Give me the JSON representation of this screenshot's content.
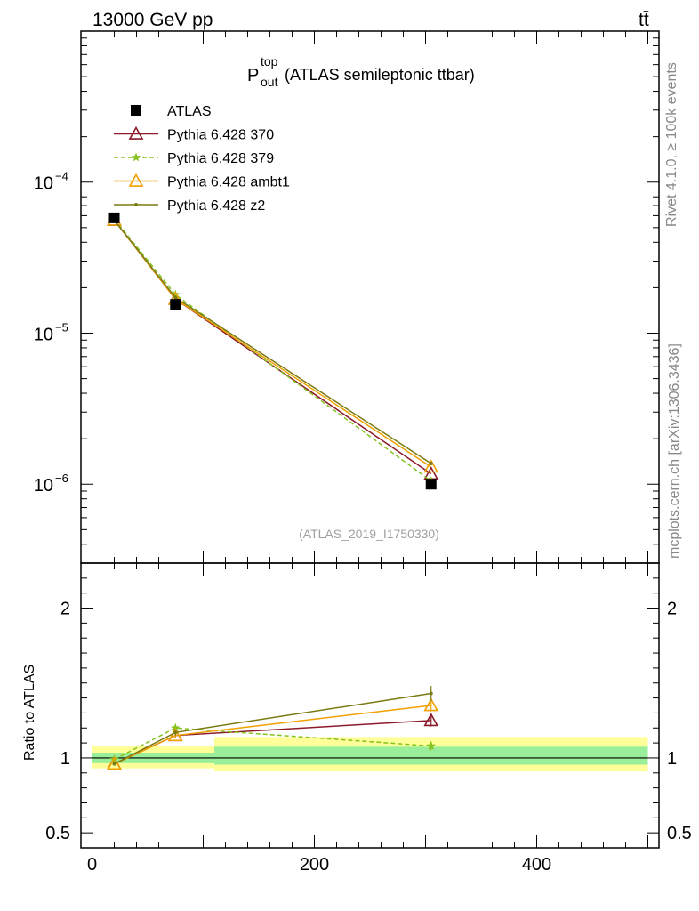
{
  "header": {
    "energy_label": "13000 GeV pp",
    "process_label": "tt̄"
  },
  "side_labels": {
    "rivet": "Rivet 4.1.0, ≥ 100k events",
    "source": "mcplots.cern.ch [arXiv:1306.3436]"
  },
  "chart_data": [
    {
      "type": "line",
      "panel": "main",
      "title_main": "P",
      "title_sup": "top",
      "title_sub": "out",
      "title_rest": "(ATLAS semileptonic ttbar)",
      "analysis_label": "(ATLAS_2019_I1750330)",
      "y_scale": "log",
      "ylim": [
        3e-07,
        0.001
      ],
      "xlim": [
        -10,
        510
      ],
      "y_ticks": [
        {
          "value": 0.0001,
          "base": "10",
          "exp": "−4"
        },
        {
          "value": 1e-05,
          "base": "10",
          "exp": "−5"
        },
        {
          "value": 1e-06,
          "base": "10",
          "exp": "−6"
        }
      ],
      "legend_position": "top-left",
      "series": [
        {
          "name": "ATLAS",
          "color": "#000000",
          "marker": "square",
          "x": [
            20,
            75,
            305
          ],
          "y": [
            5.8e-05,
            1.55e-05,
            1e-06
          ],
          "yerr": [
            0,
            0,
            0
          ]
        },
        {
          "name": "Pythia 6.428 370",
          "color": "#8b1a2b",
          "marker": "triangle-open",
          "dash": "",
          "x": [
            20,
            75,
            305
          ],
          "y": [
            5.6e-05,
            1.68e-05,
            1.17e-06
          ]
        },
        {
          "name": "Pythia 6.428 379",
          "color": "#86c21e",
          "marker": "star",
          "dash": "5,3",
          "x": [
            20,
            75,
            305
          ],
          "y": [
            5.7e-05,
            1.8e-05,
            1.05e-06
          ]
        },
        {
          "name": "Pythia 6.428 ambt1",
          "color": "#f0a000",
          "marker": "triangle-open",
          "dash": "",
          "x": [
            20,
            75,
            305
          ],
          "y": [
            5.6e-05,
            1.68e-05,
            1.3e-06
          ]
        },
        {
          "name": "Pythia 6.428 z2",
          "color": "#7a7a10",
          "marker": "dot",
          "dash": "",
          "x": [
            20,
            75,
            305
          ],
          "y": [
            5.6e-05,
            1.72e-05,
            1.37e-06
          ]
        }
      ]
    },
    {
      "type": "line",
      "panel": "ratio",
      "ylabel": "Ratio to ATLAS",
      "ylim": [
        0.4,
        2.3
      ],
      "xlim": [
        -10,
        510
      ],
      "x_ticks": [
        0,
        200,
        400
      ],
      "y_ticks": [
        0.5,
        1,
        2
      ],
      "bands": [
        {
          "x": [
            0,
            110
          ],
          "yellow": [
            0.93,
            1.08
          ],
          "green": [
            0.965,
            1.035
          ]
        },
        {
          "x": [
            110,
            500
          ],
          "yellow": [
            0.91,
            1.14
          ],
          "green": [
            0.955,
            1.075
          ]
        }
      ],
      "series": [
        {
          "name": "Pythia 6.428 370",
          "color": "#8b1a2b",
          "marker": "triangle-open",
          "dash": "",
          "x": [
            20,
            75,
            305
          ],
          "y": [
            0.96,
            1.15,
            1.25
          ],
          "yerr": [
            0.01,
            0.02,
            0.04
          ]
        },
        {
          "name": "Pythia 6.428 379",
          "color": "#86c21e",
          "marker": "star",
          "dash": "5,3",
          "x": [
            20,
            75,
            305
          ],
          "y": [
            0.99,
            1.2,
            1.08
          ],
          "yerr": [
            0.01,
            0.02,
            0.03
          ]
        },
        {
          "name": "Pythia 6.428 ambt1",
          "color": "#f0a000",
          "marker": "triangle-open",
          "dash": "",
          "x": [
            20,
            75,
            305
          ],
          "y": [
            0.96,
            1.15,
            1.35
          ],
          "yerr": [
            0.01,
            0.02,
            0.04
          ]
        },
        {
          "name": "Pythia 6.428 z2",
          "color": "#7a7a10",
          "marker": "dot",
          "dash": "",
          "x": [
            20,
            75,
            305
          ],
          "y": [
            0.96,
            1.17,
            1.43
          ],
          "yerr": [
            0.01,
            0.02,
            0.05
          ]
        }
      ]
    }
  ]
}
